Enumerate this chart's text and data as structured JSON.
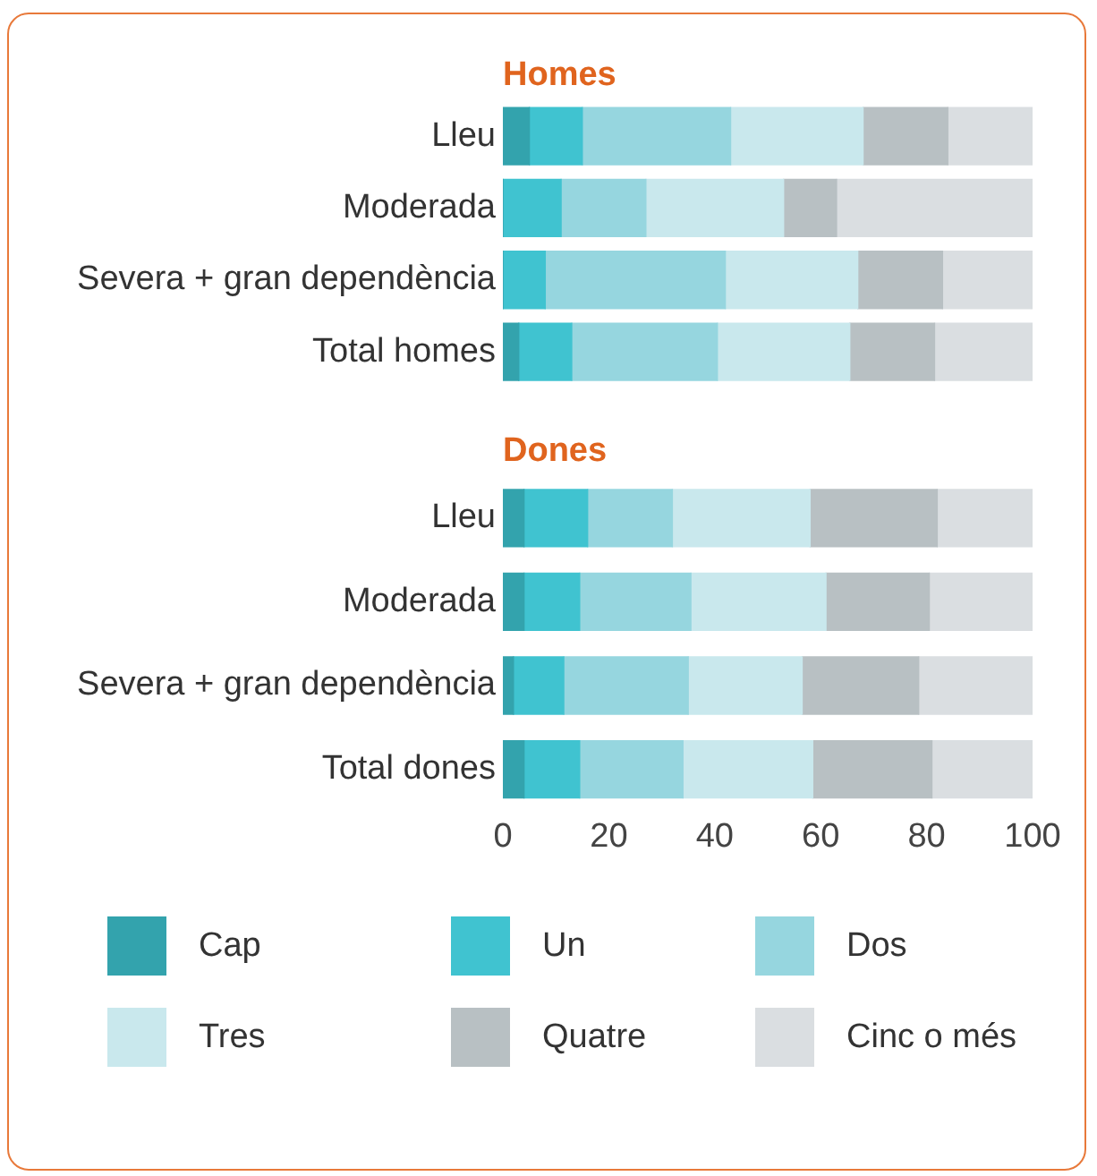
{
  "chart_data": [
    {
      "type": "bar",
      "title": "Homes",
      "orientation": "horizontal",
      "stacked": true,
      "categories": [
        "Lleu",
        "Moderada",
        "Severa + gran dependència",
        "Total homes"
      ],
      "xlim": [
        0,
        100
      ],
      "tick_labels": "y",
      "grid": false,
      "legend": "bottom",
      "series": [
        {
          "name": "Cap",
          "color": "#33a3ad",
          "values": [
            5,
            0,
            0,
            3
          ]
        },
        {
          "name": "Un",
          "color": "#40c3d0",
          "values": [
            10,
            11,
            8,
            10
          ]
        },
        {
          "name": "Dos",
          "color": "#96d6df",
          "values": [
            28,
            16,
            34,
            27.5
          ]
        },
        {
          "name": "Tres",
          "color": "#c9e8ed",
          "values": [
            25,
            26,
            25,
            25
          ]
        },
        {
          "name": "Quatre",
          "color": "#b8c0c3",
          "values": [
            16,
            10,
            16,
            16
          ]
        },
        {
          "name": "Cinc o més",
          "color": "#dadee1",
          "values": [
            16,
            37,
            17,
            18.5
          ]
        }
      ]
    },
    {
      "type": "bar",
      "title": "Dones",
      "orientation": "horizontal",
      "stacked": true,
      "categories": [
        "Lleu",
        "Moderada",
        "Severa + gran dependència",
        "Total dones"
      ],
      "xlim": [
        0,
        100
      ],
      "xticks": [
        0,
        20,
        40,
        60,
        80,
        100
      ],
      "grid": false,
      "legend": "bottom",
      "series": [
        {
          "name": "Cap",
          "color": "#33a3ad",
          "values": [
            4,
            4,
            2,
            4
          ]
        },
        {
          "name": "Un",
          "color": "#40c3d0",
          "values": [
            12,
            10.5,
            9.5,
            10.5
          ]
        },
        {
          "name": "Dos",
          "color": "#96d6df",
          "values": [
            16,
            21,
            23.5,
            19.5
          ]
        },
        {
          "name": "Tres",
          "color": "#c9e8ed",
          "values": [
            26,
            25.5,
            21.5,
            24.5
          ]
        },
        {
          "name": "Quatre",
          "color": "#b8c0c3",
          "values": [
            24,
            19.5,
            22,
            22.5
          ]
        },
        {
          "name": "Cinc o més",
          "color": "#dadee1",
          "values": [
            18,
            19.5,
            21.5,
            19
          ]
        }
      ]
    }
  ]
}
